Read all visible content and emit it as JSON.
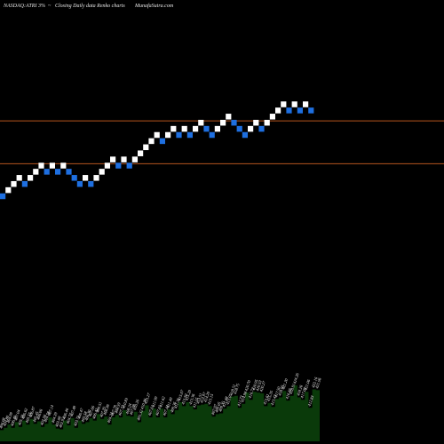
{
  "header": {
    "symbol": "NASDAQ:ATRI 3%",
    "arrow": "~",
    "chart_desc": "Closing Daily data  Renko  charts",
    "site": "MunafaSutra.com"
  },
  "colors": {
    "background": "#000000",
    "up_brick": "#ffffff",
    "down_brick": "#1e6fe0",
    "level_line": "#b4541e",
    "volume_fill": "#0a3a0a"
  },
  "chart_data": {
    "type": "renko",
    "box_size_percent": 3,
    "bricks": [
      {
        "step": 0,
        "level": 0,
        "dir": "down"
      },
      {
        "step": 1,
        "level": 1,
        "dir": "up"
      },
      {
        "step": 2,
        "level": 2,
        "dir": "up"
      },
      {
        "step": 3,
        "level": 3,
        "dir": "up"
      },
      {
        "step": 4,
        "level": 2,
        "dir": "down"
      },
      {
        "step": 5,
        "level": 3,
        "dir": "up"
      },
      {
        "step": 6,
        "level": 4,
        "dir": "up"
      },
      {
        "step": 7,
        "level": 5,
        "dir": "up"
      },
      {
        "step": 8,
        "level": 4,
        "dir": "down"
      },
      {
        "step": 9,
        "level": 5,
        "dir": "up"
      },
      {
        "step": 10,
        "level": 4,
        "dir": "down"
      },
      {
        "step": 11,
        "level": 5,
        "dir": "up"
      },
      {
        "step": 12,
        "level": 4,
        "dir": "down"
      },
      {
        "step": 13,
        "level": 3,
        "dir": "down"
      },
      {
        "step": 14,
        "level": 2,
        "dir": "down"
      },
      {
        "step": 15,
        "level": 3,
        "dir": "up"
      },
      {
        "step": 16,
        "level": 2,
        "dir": "down"
      },
      {
        "step": 17,
        "level": 3,
        "dir": "up"
      },
      {
        "step": 18,
        "level": 4,
        "dir": "up"
      },
      {
        "step": 19,
        "level": 5,
        "dir": "up"
      },
      {
        "step": 20,
        "level": 6,
        "dir": "up"
      },
      {
        "step": 21,
        "level": 5,
        "dir": "down"
      },
      {
        "step": 22,
        "level": 6,
        "dir": "up"
      },
      {
        "step": 23,
        "level": 5,
        "dir": "down"
      },
      {
        "step": 24,
        "level": 6,
        "dir": "up"
      },
      {
        "step": 25,
        "level": 7,
        "dir": "up"
      },
      {
        "step": 26,
        "level": 8,
        "dir": "up"
      },
      {
        "step": 27,
        "level": 9,
        "dir": "up"
      },
      {
        "step": 28,
        "level": 10,
        "dir": "up"
      },
      {
        "step": 29,
        "level": 9,
        "dir": "down"
      },
      {
        "step": 30,
        "level": 10,
        "dir": "up"
      },
      {
        "step": 31,
        "level": 11,
        "dir": "up"
      },
      {
        "step": 32,
        "level": 10,
        "dir": "down"
      },
      {
        "step": 33,
        "level": 11,
        "dir": "up"
      },
      {
        "step": 34,
        "level": 10,
        "dir": "down"
      },
      {
        "step": 35,
        "level": 11,
        "dir": "up"
      },
      {
        "step": 36,
        "level": 12,
        "dir": "up"
      },
      {
        "step": 37,
        "level": 11,
        "dir": "down"
      },
      {
        "step": 38,
        "level": 10,
        "dir": "down"
      },
      {
        "step": 39,
        "level": 11,
        "dir": "up"
      },
      {
        "step": 40,
        "level": 12,
        "dir": "up"
      },
      {
        "step": 41,
        "level": 13,
        "dir": "up"
      },
      {
        "step": 42,
        "level": 12,
        "dir": "down"
      },
      {
        "step": 43,
        "level": 11,
        "dir": "down"
      },
      {
        "step": 44,
        "level": 10,
        "dir": "down"
      },
      {
        "step": 45,
        "level": 11,
        "dir": "up"
      },
      {
        "step": 46,
        "level": 12,
        "dir": "up"
      },
      {
        "step": 47,
        "level": 11,
        "dir": "down"
      },
      {
        "step": 48,
        "level": 12,
        "dir": "up"
      },
      {
        "step": 49,
        "level": 13,
        "dir": "up"
      },
      {
        "step": 50,
        "level": 14,
        "dir": "up"
      },
      {
        "step": 51,
        "level": 15,
        "dir": "up"
      },
      {
        "step": 52,
        "level": 14,
        "dir": "down"
      },
      {
        "step": 53,
        "level": 15,
        "dir": "up"
      },
      {
        "step": 54,
        "level": 14,
        "dir": "down"
      },
      {
        "step": 55,
        "level": 15,
        "dir": "up"
      },
      {
        "step": 56,
        "level": 14,
        "dir": "down"
      }
    ],
    "levels": [
      5.3,
      12.3
    ],
    "level_range": [
      0,
      16
    ],
    "volume": {
      "labels": [
        "406.08",
        "404.80",
        "404.99",
        "406.40",
        "407.04",
        "405.10",
        "406.62",
        "405.55",
        "406.87",
        "405.45",
        "406.06",
        "403.56",
        "404.78",
        "407.14",
        "404.39",
        "403.08",
        "402.92",
        "406.46",
        "404.77",
        "407.48",
        "403.71",
        "406.47",
        "405.58",
        "406.30",
        "407.66",
        "406.42",
        "409.51",
        "407.35",
        "408.36",
        "404.24",
        "407.79",
        "408.59",
        "407.72",
        "410.83",
        "408.24",
        "407.98",
        "410.26",
        "405.32",
        "410.36",
        "413.27",
        "407.61",
        "411.99",
        "407.61",
        "411.62",
        "407.44",
        "411.49",
        "409.36",
        "411.36",
        "415.07",
        "413.50",
        "415.20",
        "413.36",
        "411.55",
        "413.51",
        "413.97",
        "414.20",
        "413.15",
        "407.97",
        "409.05",
        "409.35",
        "411.88",
        "413.05",
        "418.51",
        "418.75",
        "412.73",
        "414.98",
        "420.70",
        "416.72",
        "420.95",
        "420.53",
        "420.27",
        "413.61",
        "415.35",
        "413.43",
        "417.50",
        "418.05",
        "421.20",
        "416.66",
        "418.91",
        "424.26",
        "418.26",
        "417.09",
        "421.06",
        "412.83",
        "422.16",
        "421.96"
      ],
      "values": [
        14,
        17,
        21,
        17,
        24,
        18,
        26,
        21,
        28,
        22,
        25,
        18,
        22,
        30,
        21,
        16,
        15,
        26,
        20,
        29,
        17,
        26,
        22,
        24,
        29,
        26,
        34,
        28,
        31,
        21,
        30,
        33,
        30,
        39,
        32,
        31,
        37,
        24,
        38,
        45,
        30,
        41,
        30,
        41,
        30,
        40,
        34,
        39,
        49,
        44,
        49,
        44,
        40,
        45,
        46,
        47,
        44,
        31,
        34,
        35,
        41,
        44,
        56,
        57,
        42,
        47,
        61,
        52,
        62,
        61,
        60,
        44,
        48,
        43,
        53,
        55,
        63,
        51,
        57,
        70,
        55,
        52,
        62,
        42,
        65,
        64
      ]
    }
  }
}
